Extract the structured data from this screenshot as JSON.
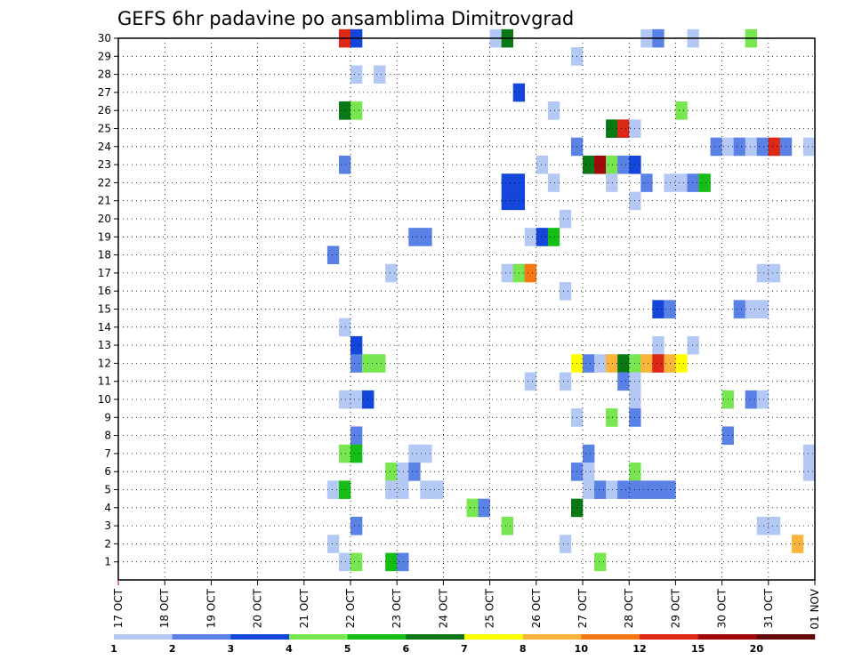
{
  "chart_data": {
    "type": "heatmap",
    "title": "GEFS 6hr padavine po ansamblima Dimitrovgrad",
    "xlabel": "",
    "ylabel": "",
    "x_tick_labels": [
      "17 OCT",
      "18 OCT",
      "19 OCT",
      "20 OCT",
      "21 OCT",
      "22 OCT",
      "23 OCT",
      "24 OCT",
      "25 OCT",
      "26 OCT",
      "27 OCT",
      "28 OCT",
      "29 OCT",
      "30 OCT",
      "31 OCT",
      "01 NOV"
    ],
    "x_steps_per_day": 4,
    "x_range_steps": [
      0,
      60
    ],
    "y_tick_labels": [
      "1",
      "2",
      "3",
      "4",
      "5",
      "6",
      "7",
      "8",
      "9",
      "10",
      "11",
      "12",
      "13",
      "14",
      "15",
      "16",
      "17",
      "18",
      "19",
      "20",
      "21",
      "22",
      "23",
      "24",
      "25",
      "26",
      "27",
      "28",
      "29",
      "30"
    ],
    "y_range": [
      0,
      30
    ],
    "grid": true,
    "legend": {
      "placement": "bottom",
      "labels": [
        "1",
        "2",
        "3",
        "4",
        "5",
        "6",
        "7",
        "8",
        "10",
        "12",
        "15",
        "20"
      ],
      "colors": [
        "#b4c8f5",
        "#5a82e6",
        "#1446dc",
        "#78e650",
        "#14be14",
        "#0a7814",
        "#ffff00",
        "#fab43c",
        "#f57814",
        "#dc2814",
        "#a00a0a",
        "#640a0a"
      ]
    },
    "cells": [
      {
        "member": 30,
        "step": 19,
        "cls": 10
      },
      {
        "member": 30,
        "step": 20,
        "cls": 3
      },
      {
        "member": 30,
        "step": 32,
        "cls": 1
      },
      {
        "member": 30,
        "step": 33,
        "cls": 6
      },
      {
        "member": 30,
        "step": 45,
        "cls": 1
      },
      {
        "member": 30,
        "step": 46,
        "cls": 2
      },
      {
        "member": 30,
        "step": 49,
        "cls": 1
      },
      {
        "member": 30,
        "step": 54,
        "cls": 4
      },
      {
        "member": 29,
        "step": 39,
        "cls": 1
      },
      {
        "member": 28,
        "step": 20,
        "cls": 1
      },
      {
        "member": 28,
        "step": 22,
        "cls": 1
      },
      {
        "member": 27,
        "step": 34,
        "cls": 3
      },
      {
        "member": 26,
        "step": 19,
        "cls": 6
      },
      {
        "member": 26,
        "step": 20,
        "cls": 4
      },
      {
        "member": 26,
        "step": 37,
        "cls": 1
      },
      {
        "member": 26,
        "step": 48,
        "cls": 4
      },
      {
        "member": 25,
        "step": 42,
        "cls": 6
      },
      {
        "member": 25,
        "step": 43,
        "cls": 10
      },
      {
        "member": 25,
        "step": 44,
        "cls": 1
      },
      {
        "member": 24,
        "step": 39,
        "cls": 2
      },
      {
        "member": 24,
        "step": 51,
        "cls": 2
      },
      {
        "member": 24,
        "step": 52,
        "cls": 1
      },
      {
        "member": 24,
        "step": 53,
        "cls": 2
      },
      {
        "member": 24,
        "step": 54,
        "cls": 1
      },
      {
        "member": 24,
        "step": 55,
        "cls": 2
      },
      {
        "member": 24,
        "step": 56,
        "cls": 10
      },
      {
        "member": 24,
        "step": 57,
        "cls": 2
      },
      {
        "member": 24,
        "step": 59,
        "cls": 1
      },
      {
        "member": 23,
        "step": 19,
        "cls": 2
      },
      {
        "member": 23,
        "step": 36,
        "cls": 1
      },
      {
        "member": 23,
        "step": 40,
        "cls": 6
      },
      {
        "member": 23,
        "step": 41,
        "cls": 11
      },
      {
        "member": 23,
        "step": 42,
        "cls": 4
      },
      {
        "member": 23,
        "step": 43,
        "cls": 2
      },
      {
        "member": 23,
        "step": 44,
        "cls": 3
      },
      {
        "member": 22,
        "step": 33,
        "cls": 3
      },
      {
        "member": 22,
        "step": 34,
        "cls": 3
      },
      {
        "member": 22,
        "step": 37,
        "cls": 1
      },
      {
        "member": 22,
        "step": 42,
        "cls": 1
      },
      {
        "member": 22,
        "step": 45,
        "cls": 2
      },
      {
        "member": 22,
        "step": 47,
        "cls": 1
      },
      {
        "member": 22,
        "step": 48,
        "cls": 1
      },
      {
        "member": 22,
        "step": 49,
        "cls": 2
      },
      {
        "member": 22,
        "step": 50,
        "cls": 5
      },
      {
        "member": 21,
        "step": 33,
        "cls": 3
      },
      {
        "member": 21,
        "step": 34,
        "cls": 3
      },
      {
        "member": 21,
        "step": 44,
        "cls": 1
      },
      {
        "member": 20,
        "step": 38,
        "cls": 1
      },
      {
        "member": 19,
        "step": 25,
        "cls": 2
      },
      {
        "member": 19,
        "step": 26,
        "cls": 2
      },
      {
        "member": 19,
        "step": 35,
        "cls": 1
      },
      {
        "member": 19,
        "step": 36,
        "cls": 3
      },
      {
        "member": 19,
        "step": 37,
        "cls": 5
      },
      {
        "member": 18,
        "step": 18,
        "cls": 2
      },
      {
        "member": 17,
        "step": 23,
        "cls": 1
      },
      {
        "member": 17,
        "step": 33,
        "cls": 1
      },
      {
        "member": 17,
        "step": 34,
        "cls": 4
      },
      {
        "member": 17,
        "step": 35,
        "cls": 9
      },
      {
        "member": 17,
        "step": 55,
        "cls": 1
      },
      {
        "member": 17,
        "step": 56,
        "cls": 1
      },
      {
        "member": 16,
        "step": 38,
        "cls": 1
      },
      {
        "member": 15,
        "step": 46,
        "cls": 3
      },
      {
        "member": 15,
        "step": 47,
        "cls": 2
      },
      {
        "member": 15,
        "step": 53,
        "cls": 2
      },
      {
        "member": 15,
        "step": 54,
        "cls": 1
      },
      {
        "member": 15,
        "step": 55,
        "cls": 1
      },
      {
        "member": 14,
        "step": 19,
        "cls": 1
      },
      {
        "member": 13,
        "step": 20,
        "cls": 3
      },
      {
        "member": 13,
        "step": 46,
        "cls": 1
      },
      {
        "member": 13,
        "step": 49,
        "cls": 1
      },
      {
        "member": 12,
        "step": 20,
        "cls": 2
      },
      {
        "member": 12,
        "step": 21,
        "cls": 4
      },
      {
        "member": 12,
        "step": 22,
        "cls": 4
      },
      {
        "member": 12,
        "step": 39,
        "cls": 7
      },
      {
        "member": 12,
        "step": 40,
        "cls": 2
      },
      {
        "member": 12,
        "step": 41,
        "cls": 1
      },
      {
        "member": 12,
        "step": 42,
        "cls": 8
      },
      {
        "member": 12,
        "step": 43,
        "cls": 6
      },
      {
        "member": 12,
        "step": 44,
        "cls": 4
      },
      {
        "member": 12,
        "step": 45,
        "cls": 8
      },
      {
        "member": 12,
        "step": 46,
        "cls": 10
      },
      {
        "member": 12,
        "step": 47,
        "cls": 8
      },
      {
        "member": 12,
        "step": 48,
        "cls": 7
      },
      {
        "member": 11,
        "step": 35,
        "cls": 1
      },
      {
        "member": 11,
        "step": 38,
        "cls": 1
      },
      {
        "member": 11,
        "step": 43,
        "cls": 2
      },
      {
        "member": 11,
        "step": 44,
        "cls": 1
      },
      {
        "member": 10,
        "step": 19,
        "cls": 1
      },
      {
        "member": 10,
        "step": 20,
        "cls": 1
      },
      {
        "member": 10,
        "step": 21,
        "cls": 3
      },
      {
        "member": 10,
        "step": 44,
        "cls": 1
      },
      {
        "member": 10,
        "step": 52,
        "cls": 4
      },
      {
        "member": 10,
        "step": 54,
        "cls": 2
      },
      {
        "member": 10,
        "step": 55,
        "cls": 1
      },
      {
        "member": 9,
        "step": 39,
        "cls": 1
      },
      {
        "member": 9,
        "step": 42,
        "cls": 4
      },
      {
        "member": 9,
        "step": 44,
        "cls": 2
      },
      {
        "member": 8,
        "step": 20,
        "cls": 2
      },
      {
        "member": 8,
        "step": 52,
        "cls": 2
      },
      {
        "member": 7,
        "step": 19,
        "cls": 4
      },
      {
        "member": 7,
        "step": 20,
        "cls": 5
      },
      {
        "member": 7,
        "step": 25,
        "cls": 1
      },
      {
        "member": 7,
        "step": 26,
        "cls": 1
      },
      {
        "member": 7,
        "step": 40,
        "cls": 2
      },
      {
        "member": 7,
        "step": 59,
        "cls": 1
      },
      {
        "member": 6,
        "step": 23,
        "cls": 4
      },
      {
        "member": 6,
        "step": 24,
        "cls": 1
      },
      {
        "member": 6,
        "step": 25,
        "cls": 2
      },
      {
        "member": 6,
        "step": 39,
        "cls": 2
      },
      {
        "member": 6,
        "step": 40,
        "cls": 1
      },
      {
        "member": 6,
        "step": 44,
        "cls": 4
      },
      {
        "member": 6,
        "step": 59,
        "cls": 1
      },
      {
        "member": 5,
        "step": 18,
        "cls": 1
      },
      {
        "member": 5,
        "step": 19,
        "cls": 5
      },
      {
        "member": 5,
        "step": 23,
        "cls": 1
      },
      {
        "member": 5,
        "step": 24,
        "cls": 1
      },
      {
        "member": 5,
        "step": 26,
        "cls": 1
      },
      {
        "member": 5,
        "step": 27,
        "cls": 1
      },
      {
        "member": 5,
        "step": 40,
        "cls": 1
      },
      {
        "member": 5,
        "step": 41,
        "cls": 2
      },
      {
        "member": 5,
        "step": 42,
        "cls": 1
      },
      {
        "member": 5,
        "step": 43,
        "cls": 2
      },
      {
        "member": 5,
        "step": 44,
        "cls": 2
      },
      {
        "member": 5,
        "step": 45,
        "cls": 2
      },
      {
        "member": 5,
        "step": 46,
        "cls": 2
      },
      {
        "member": 5,
        "step": 47,
        "cls": 2
      },
      {
        "member": 4,
        "step": 30,
        "cls": 4
      },
      {
        "member": 4,
        "step": 31,
        "cls": 2
      },
      {
        "member": 4,
        "step": 39,
        "cls": 6
      },
      {
        "member": 3,
        "step": 20,
        "cls": 2
      },
      {
        "member": 3,
        "step": 33,
        "cls": 4
      },
      {
        "member": 3,
        "step": 55,
        "cls": 1
      },
      {
        "member": 3,
        "step": 56,
        "cls": 1
      },
      {
        "member": 2,
        "step": 18,
        "cls": 1
      },
      {
        "member": 2,
        "step": 38,
        "cls": 1
      },
      {
        "member": 2,
        "step": 58,
        "cls": 8
      },
      {
        "member": 1,
        "step": 19,
        "cls": 1
      },
      {
        "member": 1,
        "step": 20,
        "cls": 4
      },
      {
        "member": 1,
        "step": 23,
        "cls": 5
      },
      {
        "member": 1,
        "step": 24,
        "cls": 2
      },
      {
        "member": 1,
        "step": 41,
        "cls": 4
      }
    ]
  }
}
